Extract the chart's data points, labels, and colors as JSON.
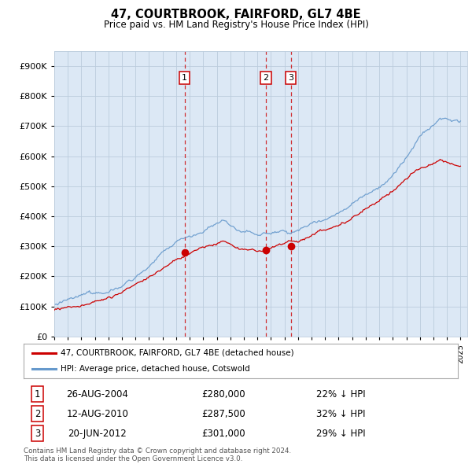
{
  "title": "47, COURTBROOK, FAIRFORD, GL7 4BE",
  "subtitle": "Price paid vs. HM Land Registry's House Price Index (HPI)",
  "ytick_values": [
    0,
    100000,
    200000,
    300000,
    400000,
    500000,
    600000,
    700000,
    800000,
    900000
  ],
  "ylim": [
    0,
    950000
  ],
  "xlim_start": 1995.0,
  "xlim_end": 2025.5,
  "sale_dates": [
    2004.62,
    2010.62,
    2012.46
  ],
  "sale_prices": [
    280000,
    287500,
    301000
  ],
  "sale_labels": [
    "1",
    "2",
    "3"
  ],
  "sale_date_strs": [
    "26-AUG-2004",
    "12-AUG-2010",
    "20-JUN-2012"
  ],
  "sale_price_strs": [
    "£280,000",
    "£287,500",
    "£301,000"
  ],
  "sale_hpi_strs": [
    "22% ↓ HPI",
    "32% ↓ HPI",
    "29% ↓ HPI"
  ],
  "legend_line1": "47, COURTBROOK, FAIRFORD, GL7 4BE (detached house)",
  "legend_line2": "HPI: Average price, detached house, Cotswold",
  "footer_line1": "Contains HM Land Registry data © Crown copyright and database right 2024.",
  "footer_line2": "This data is licensed under the Open Government Licence v3.0.",
  "line_color_red": "#cc0000",
  "line_color_blue": "#6699cc",
  "plot_bg_color": "#dce8f5",
  "dashed_line_color": "#cc0000",
  "background_color": "#ffffff",
  "grid_color": "#bbccdd",
  "label_box_color": "#cc0000"
}
